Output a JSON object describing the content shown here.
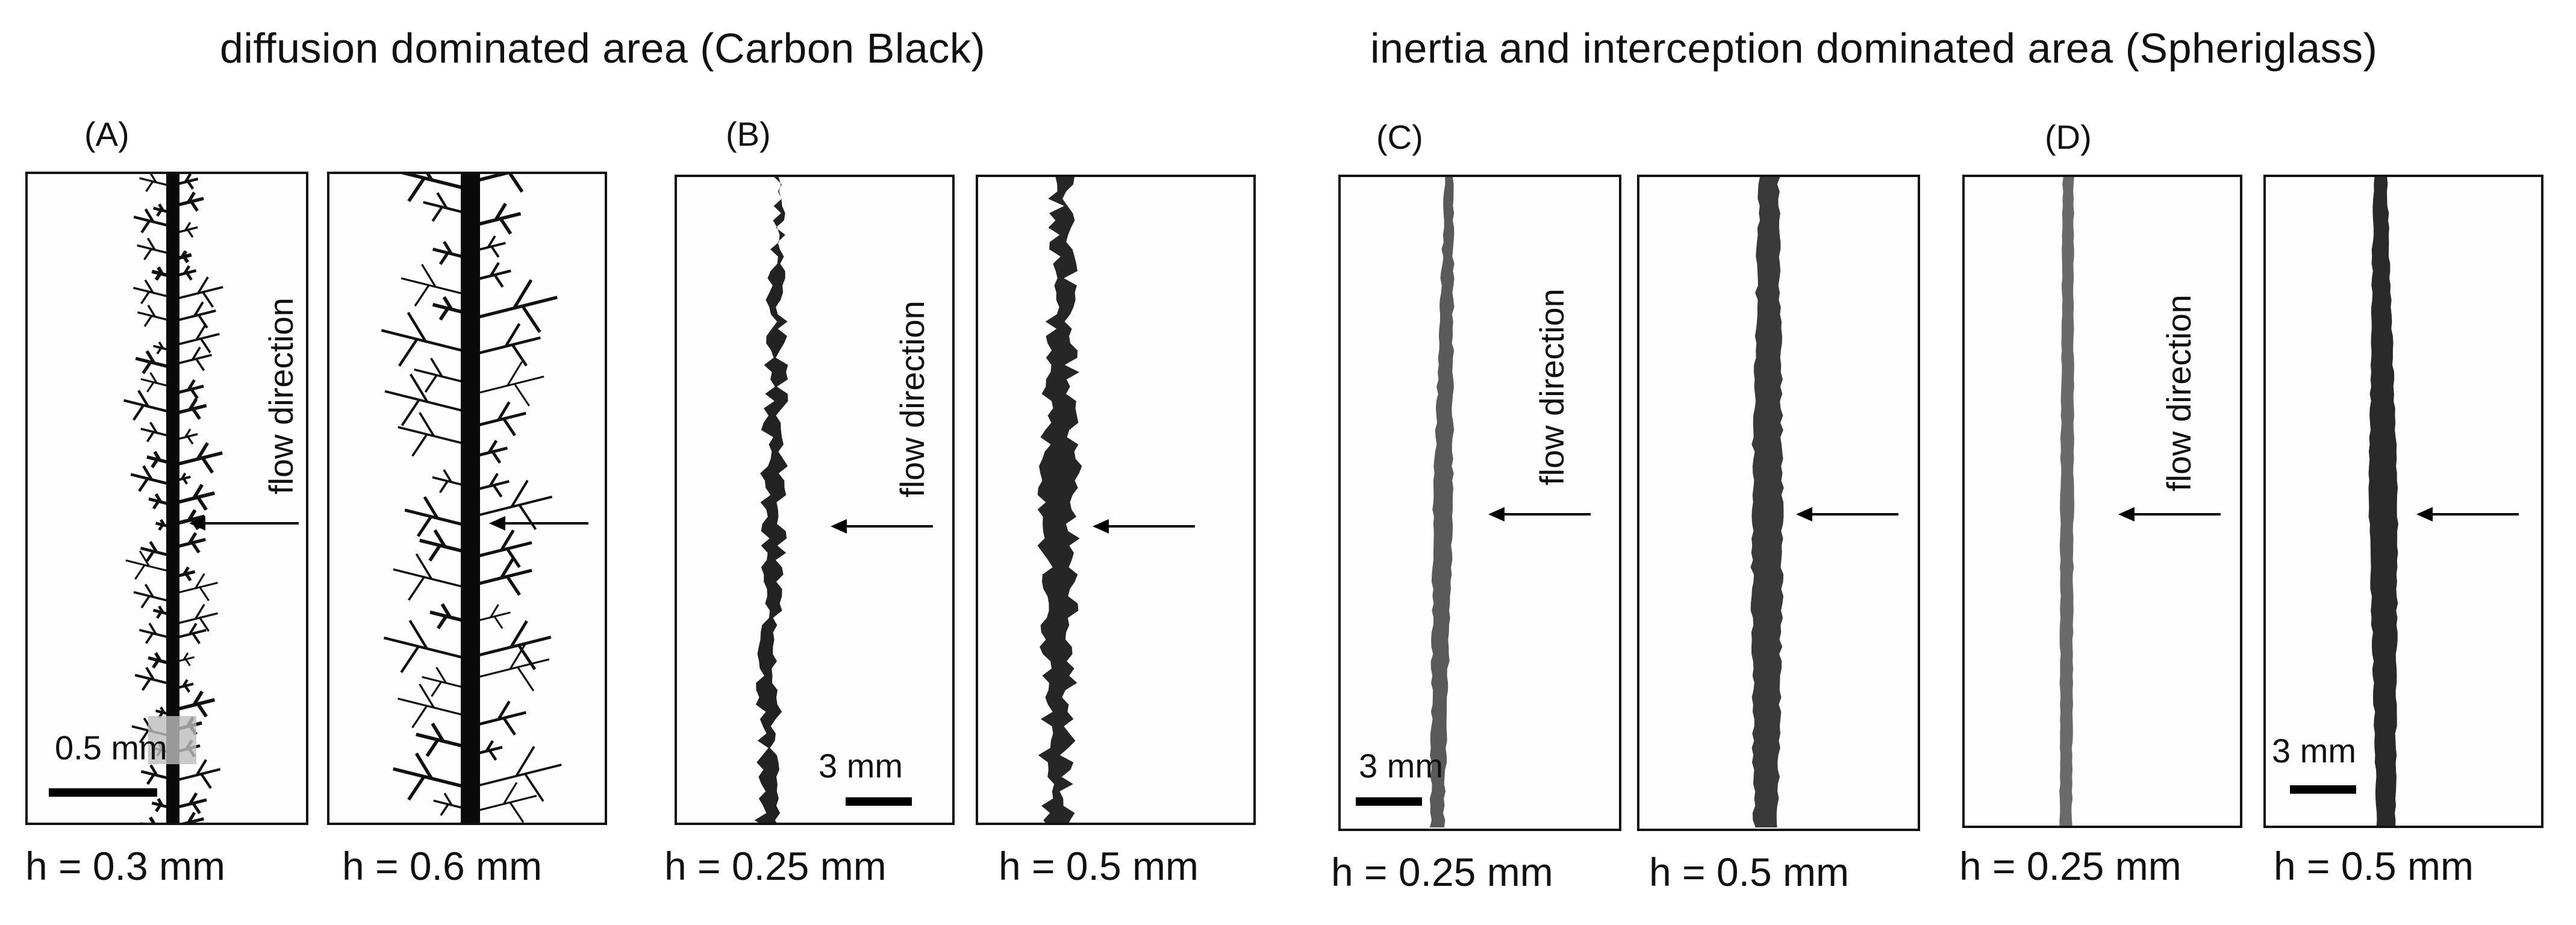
{
  "headings": {
    "left": "diffusion dominated area (Carbon Black)",
    "right": "inertia and interception dominated area (Spheriglass)"
  },
  "groups": {
    "A": "(A)",
    "B": "(B)",
    "C": "(C)",
    "D": "(D)"
  },
  "flow_label": "flow direction",
  "scales": {
    "a": "0.5 mm",
    "b": "3 mm",
    "c": "3 mm",
    "d": "3 mm"
  },
  "h_labels": {
    "a1": "h = 0.3 mm",
    "a2": "h = 0.6 mm",
    "b1": "h = 0.25 mm",
    "b2": "h = 0.5 mm",
    "c1": "h = 0.25 mm",
    "c2": "h = 0.5 mm",
    "d1": "h = 0.25 mm",
    "d2": "h = 0.5 mm"
  },
  "colors": {
    "carbon_black": "#0a0a0a",
    "spheriglass_light": "#5a5a5a",
    "spheriglass_dark": "#2a2a2a",
    "arrow": "#000000"
  }
}
